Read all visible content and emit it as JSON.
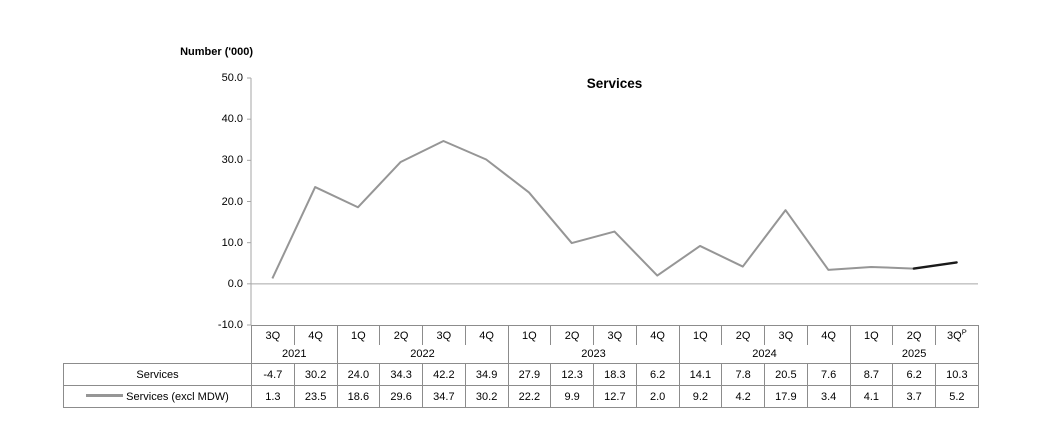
{
  "chart": {
    "y_axis_title": "Number ('000)",
    "title": "Services",
    "y_ticks": [
      "50.0",
      "40.0",
      "30.0",
      "20.0",
      "10.0",
      "0.0",
      "-10.0"
    ],
    "line_color": "#969696",
    "prelim_color": "#1a1a1a",
    "axis_color": "#a6a6a6",
    "table_border_color": "#8c8c8c"
  },
  "chart_data": {
    "type": "line",
    "title": "Services",
    "ylabel": "Number ('000)",
    "ylim": [
      -10,
      50
    ],
    "grid": false,
    "legend_position": "table-left-column",
    "categories": [
      "3Q 2021",
      "4Q 2021",
      "1Q 2022",
      "2Q 2022",
      "3Q 2022",
      "4Q 2022",
      "1Q 2023",
      "2Q 2023",
      "3Q 2023",
      "4Q 2023",
      "1Q 2024",
      "2Q 2024",
      "3Q 2024",
      "4Q 2024",
      "1Q 2025",
      "2Q 2025",
      "3Q 2025 (P)"
    ],
    "series": [
      {
        "name": "Services",
        "plotted": false,
        "values": [
          -4.7,
          30.2,
          24.0,
          34.3,
          42.2,
          34.9,
          27.9,
          12.3,
          18.3,
          6.2,
          14.1,
          7.8,
          20.5,
          7.6,
          8.7,
          6.2,
          10.3
        ]
      },
      {
        "name": "Services (excl MDW)",
        "plotted": true,
        "values": [
          1.3,
          23.5,
          18.6,
          29.6,
          34.7,
          30.2,
          22.2,
          9.9,
          12.7,
          2.0,
          9.2,
          4.2,
          17.9,
          3.4,
          4.1,
          3.7,
          5.2
        ]
      }
    ],
    "prelim_segment_start_index": 15
  },
  "table": {
    "quarters": [
      {
        "label": "3Q",
        "sup": ""
      },
      {
        "label": "4Q",
        "sup": ""
      },
      {
        "label": "1Q",
        "sup": ""
      },
      {
        "label": "2Q",
        "sup": ""
      },
      {
        "label": "3Q",
        "sup": ""
      },
      {
        "label": "4Q",
        "sup": ""
      },
      {
        "label": "1Q",
        "sup": ""
      },
      {
        "label": "2Q",
        "sup": ""
      },
      {
        "label": "3Q",
        "sup": ""
      },
      {
        "label": "4Q",
        "sup": ""
      },
      {
        "label": "1Q",
        "sup": ""
      },
      {
        "label": "2Q",
        "sup": ""
      },
      {
        "label": "3Q",
        "sup": ""
      },
      {
        "label": "4Q",
        "sup": ""
      },
      {
        "label": "1Q",
        "sup": ""
      },
      {
        "label": "2Q",
        "sup": ""
      },
      {
        "label": "3Q",
        "sup": "P"
      }
    ],
    "year_groups": [
      {
        "label": "2021",
        "span": 2
      },
      {
        "label": "2022",
        "span": 4
      },
      {
        "label": "2023",
        "span": 4
      },
      {
        "label": "2024",
        "span": 4
      },
      {
        "label": "2025",
        "span": 3
      }
    ]
  }
}
